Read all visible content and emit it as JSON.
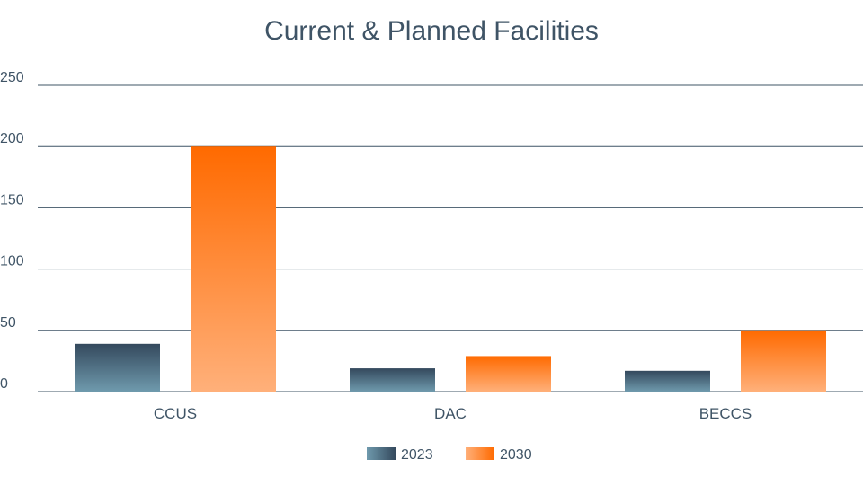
{
  "chart_data": {
    "type": "bar",
    "title": "Current & Planned Facilities",
    "categories": [
      "CCUS",
      "DAC",
      "BECCS"
    ],
    "series": [
      {
        "name": "2023",
        "values": [
          39,
          19,
          17
        ]
      },
      {
        "name": "2030",
        "values": [
          200,
          29,
          50
        ]
      }
    ],
    "ylim": [
      0,
      250
    ],
    "yticks": [
      0,
      50,
      100,
      150,
      200,
      250
    ],
    "grid": true,
    "legend_position": "bottom-center",
    "colors": {
      "2023_top": "#34495d",
      "2023_bottom": "#6f9aad",
      "2030_top": "#ff6a00",
      "2030_bottom": "#ffb07a",
      "grid": "#3f5466",
      "text": "#3f5466"
    }
  }
}
